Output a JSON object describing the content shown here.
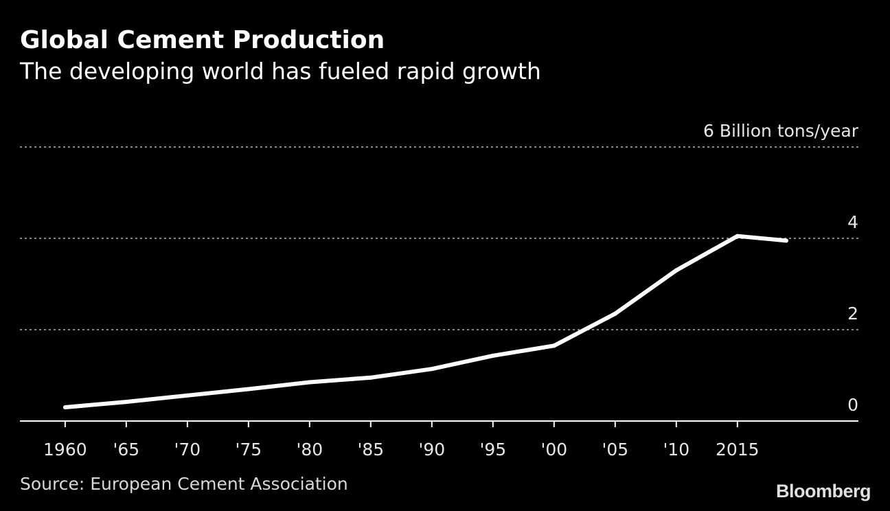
{
  "chart_data": {
    "type": "line",
    "title": "Global Cement Production",
    "subtitle": "The developing world has fueled rapid growth",
    "ylabel_unit": "6 Billion tons/year",
    "source": "Source: European Cement Association",
    "brand": "Bloomberg",
    "x": [
      1960,
      1965,
      1970,
      1975,
      1980,
      1985,
      1990,
      1995,
      2000,
      2005,
      2010,
      2015,
      2019
    ],
    "series": [
      {
        "name": "Global cement production",
        "values": [
          0.3,
          0.42,
          0.56,
          0.7,
          0.85,
          0.95,
          1.14,
          1.43,
          1.65,
          2.35,
          3.3,
          4.05,
          3.95
        ]
      }
    ],
    "x_tick_values": [
      1960,
      1965,
      1970,
      1975,
      1980,
      1985,
      1990,
      1995,
      2000,
      2005,
      2010,
      2015
    ],
    "x_tick_labels": [
      "1960",
      "'65",
      "'70",
      "'75",
      "'80",
      "'85",
      "'90",
      "'95",
      "'00",
      "'05",
      "'10",
      "2015"
    ],
    "y_ticks": [
      {
        "value": 0,
        "label": "0"
      },
      {
        "value": 2,
        "label": "2"
      },
      {
        "value": 4,
        "label": "4"
      },
      {
        "value": 6,
        "label": "6 Billion tons/year"
      }
    ],
    "ylim": [
      0,
      6
    ],
    "xlim": [
      1956.3,
      2024.9
    ],
    "grid": true,
    "colors": {
      "background": "#000000",
      "line": "#ffffff",
      "grid": "#8a8a8a",
      "axis": "#ffffff",
      "text": "#e6e6e6"
    }
  }
}
